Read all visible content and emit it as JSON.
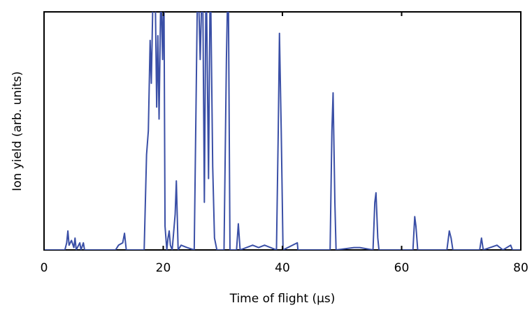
{
  "chart_data": {
    "type": "line",
    "xlabel": "Time of flight (μs)",
    "ylabel": "Ion yield (arb. units)",
    "xlim": [
      0,
      80
    ],
    "xticks": [
      0,
      20,
      40,
      60,
      80
    ],
    "ylim": [
      0,
      1
    ],
    "series": [
      {
        "color": "#3a4fa6",
        "x": [
          0,
          3.5,
          3.8,
          4.0,
          4.2,
          4.6,
          5.0,
          5.2,
          5.4,
          6.0,
          6.2,
          6.6,
          6.8,
          12,
          12.5,
          13.2,
          13.5,
          13.8,
          16.8,
          17.2,
          17.5,
          17.8,
          18.0,
          18.3,
          18.6,
          18.9,
          19.1,
          19.3,
          19.6,
          19.9,
          20.1,
          20.3,
          20.6,
          20.8,
          21.0,
          21.2,
          21.5,
          22.0,
          22.2,
          22.5,
          23,
          24,
          25.2,
          25.5,
          25.8,
          26.2,
          26.6,
          26.9,
          27.2,
          27.6,
          27.9,
          28.3,
          28.6,
          29,
          30.2,
          30.6,
          30.9,
          31.2,
          32.3,
          32.6,
          32.9,
          35,
          36,
          37,
          38,
          39,
          39.3,
          39.5,
          39.8,
          40.1,
          42.5,
          42.6,
          48.0,
          48.3,
          48.5,
          48.8,
          49.0,
          52,
          53,
          55.2,
          55.5,
          55.7,
          56.0,
          56.2,
          61.9,
          62.2,
          62.4,
          62.7,
          67.6,
          68.0,
          68.3,
          68.6,
          73.1,
          73.4,
          73.7,
          76,
          77,
          78.3,
          78.6,
          80
        ],
        "values": [
          0,
          0,
          0.03,
          0.08,
          0.02,
          0.04,
          0.01,
          0.05,
          0,
          0.03,
          0,
          0.03,
          0,
          0,
          0.02,
          0.03,
          0.07,
          0,
          0,
          0.4,
          0.5,
          0.88,
          0.7,
          1.1,
          1.2,
          0.6,
          0.9,
          0.55,
          1.1,
          0.8,
          1.2,
          0.1,
          0,
          0.05,
          0.08,
          0.02,
          0,
          0.15,
          0.29,
          0,
          0.02,
          0.01,
          0,
          0.6,
          1.2,
          0.8,
          1.2,
          0.2,
          1.2,
          0.3,
          1.2,
          0.35,
          0.05,
          0,
          0,
          0.8,
          1.2,
          0,
          0,
          0.11,
          0,
          0.02,
          0.01,
          0.02,
          0.01,
          0,
          0.5,
          0.91,
          0.5,
          0,
          0.03,
          0,
          0,
          0.5,
          0.66,
          0.2,
          0,
          0.01,
          0.01,
          0,
          0.2,
          0.24,
          0.05,
          0,
          0,
          0.14,
          0.1,
          0,
          0,
          0.08,
          0.05,
          0,
          0,
          0.05,
          0,
          0.02,
          0,
          0.02,
          0,
          0
        ]
      }
    ]
  }
}
